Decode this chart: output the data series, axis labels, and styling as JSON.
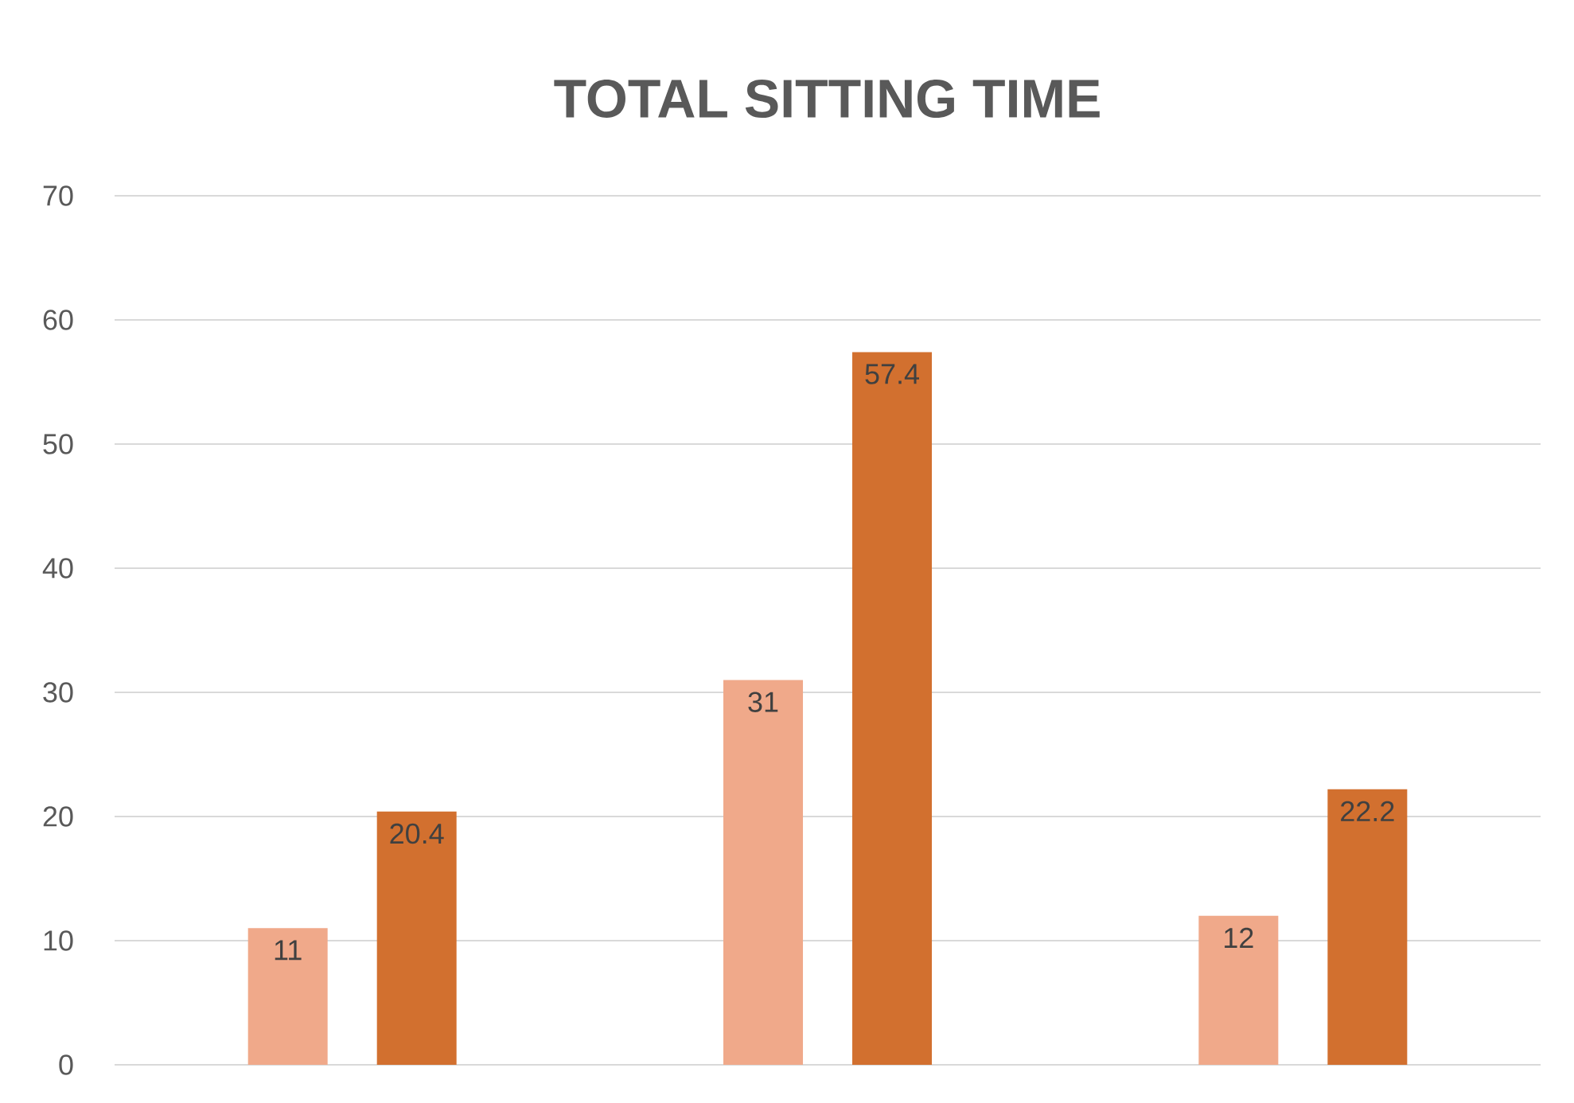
{
  "chart_data": {
    "type": "bar",
    "title": "TOTAL SITTING TIME",
    "categories": [
      null,
      null,
      null
    ],
    "series": [
      {
        "color": "#f0a98a",
        "values": [
          11,
          31,
          12
        ]
      },
      {
        "color": "#d2702f",
        "values": [
          20.4,
          57.4,
          22.2
        ]
      }
    ],
    "ylim": [
      0,
      70
    ],
    "yticks": [
      0,
      10,
      20,
      30,
      40,
      50,
      60,
      70
    ],
    "grid": "y",
    "data_labels": true
  }
}
